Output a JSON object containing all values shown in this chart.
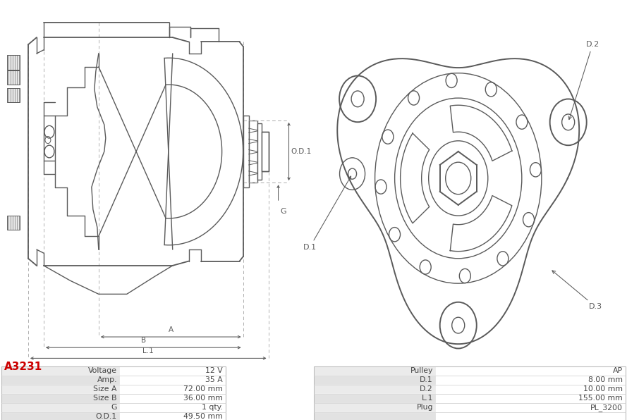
{
  "title": "A3231",
  "title_color": "#cc0000",
  "bg_color": "#ffffff",
  "left_col_labels": [
    "Voltage",
    "Amp.",
    "Size A",
    "Size B",
    "G",
    "O.D.1"
  ],
  "left_col_values": [
    "12 V",
    "35 A",
    "72.00 mm",
    "36.00 mm",
    "1 qty.",
    "49.50 mm"
  ],
  "right_col_labels": [
    "Pulley",
    "D.1",
    "D.2",
    "L.1",
    "Plug",
    ""
  ],
  "right_col_values": [
    "AP",
    "8.00 mm",
    "10.00 mm",
    "155.00 mm",
    "PL_3200",
    ""
  ],
  "line_color": "#5a5a5a",
  "dim_color": "#5a5a5a"
}
